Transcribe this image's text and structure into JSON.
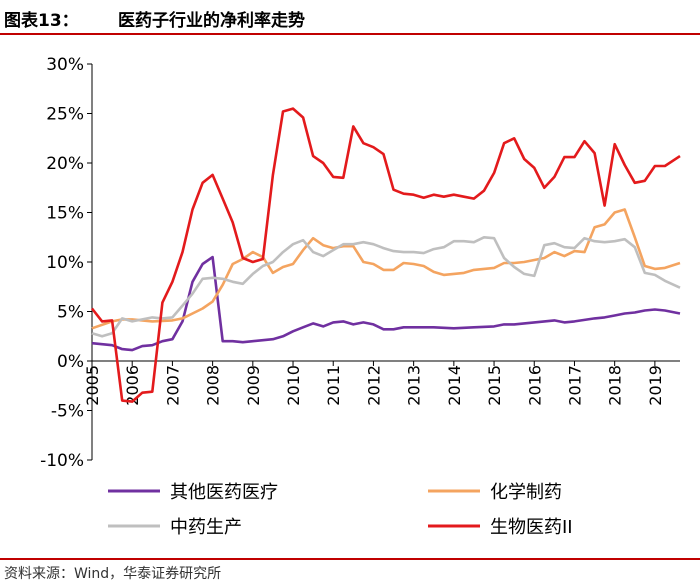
{
  "header": {
    "label": "图表13：",
    "title": "医药子行业的净利率走势"
  },
  "source": "资料来源：Wind，华泰证券研究所",
  "colors": {
    "accent": "#c00000"
  },
  "chart_data": {
    "type": "line",
    "title": "医药子行业的净利率走势",
    "xlabel": "",
    "ylabel": "",
    "ylim": [
      -10,
      30
    ],
    "xlim": [
      2005,
      2019.625
    ],
    "y_ticks": [
      -10,
      -5,
      0,
      5,
      10,
      15,
      20,
      25,
      30
    ],
    "y_tick_labels": [
      "-10%",
      "-5%",
      "0%",
      "5%",
      "10%",
      "15%",
      "20%",
      "25%",
      "30%"
    ],
    "x_ticks": [
      2005,
      2006,
      2007,
      2008,
      2009,
      2010,
      2011,
      2012,
      2013,
      2014,
      2015,
      2016,
      2017,
      2018,
      2019
    ],
    "x_tick_labels": [
      "2005",
      "2006",
      "2007",
      "2008",
      "2009",
      "2010",
      "2011",
      "2012",
      "2013",
      "2014",
      "2015",
      "2016",
      "2017",
      "2018",
      "2019"
    ],
    "grid": false,
    "legend_position": "bottom",
    "series": [
      {
        "name": "其他医药医疗",
        "color": "#7030a0",
        "points": [
          [
            2005,
            1.8
          ],
          [
            2005.5,
            1.6
          ],
          [
            2005.75,
            1.2
          ],
          [
            2006,
            1.1
          ],
          [
            2006.25,
            1.5
          ],
          [
            2006.5,
            1.6
          ],
          [
            2006.75,
            2.0
          ],
          [
            2007,
            2.2
          ],
          [
            2007.25,
            4.0
          ],
          [
            2007.5,
            8.0
          ],
          [
            2007.75,
            9.8
          ],
          [
            2008,
            10.5
          ],
          [
            2008.25,
            2.0
          ],
          [
            2008.5,
            2.0
          ],
          [
            2008.75,
            1.9
          ],
          [
            2009,
            2.0
          ],
          [
            2009.25,
            2.1
          ],
          [
            2009.5,
            2.2
          ],
          [
            2009.75,
            2.5
          ],
          [
            2010,
            3.0
          ],
          [
            2010.25,
            3.4
          ],
          [
            2010.5,
            3.8
          ],
          [
            2010.75,
            3.5
          ],
          [
            2011,
            3.9
          ],
          [
            2011.25,
            4.0
          ],
          [
            2011.5,
            3.7
          ],
          [
            2011.75,
            3.9
          ],
          [
            2012,
            3.7
          ],
          [
            2012.25,
            3.2
          ],
          [
            2012.5,
            3.2
          ],
          [
            2012.75,
            3.4
          ],
          [
            2013,
            3.4
          ],
          [
            2013.5,
            3.4
          ],
          [
            2014,
            3.3
          ],
          [
            2014.5,
            3.4
          ],
          [
            2015,
            3.5
          ],
          [
            2015.25,
            3.7
          ],
          [
            2015.5,
            3.7
          ],
          [
            2015.75,
            3.8
          ],
          [
            2016,
            3.9
          ],
          [
            2016.5,
            4.1
          ],
          [
            2016.75,
            3.9
          ],
          [
            2017,
            4.0
          ],
          [
            2017.5,
            4.3
          ],
          [
            2017.75,
            4.4
          ],
          [
            2018,
            4.6
          ],
          [
            2018.25,
            4.8
          ],
          [
            2018.5,
            4.9
          ],
          [
            2018.75,
            5.1
          ],
          [
            2019,
            5.2
          ],
          [
            2019.25,
            5.1
          ],
          [
            2019.625,
            4.8
          ]
        ]
      },
      {
        "name": "化学制药",
        "color": "#f4a460",
        "points": [
          [
            2005,
            3.3
          ],
          [
            2005.5,
            4.0
          ],
          [
            2005.75,
            4.2
          ],
          [
            2006,
            4.2
          ],
          [
            2006.5,
            4.0
          ],
          [
            2007,
            4.1
          ],
          [
            2007.25,
            4.3
          ],
          [
            2007.5,
            4.8
          ],
          [
            2007.75,
            5.3
          ],
          [
            2008,
            6.0
          ],
          [
            2008.25,
            7.7
          ],
          [
            2008.5,
            9.8
          ],
          [
            2008.75,
            10.3
          ],
          [
            2009,
            11.0
          ],
          [
            2009.25,
            10.5
          ],
          [
            2009.5,
            8.9
          ],
          [
            2009.75,
            9.5
          ],
          [
            2010,
            9.8
          ],
          [
            2010.25,
            11.2
          ],
          [
            2010.5,
            12.4
          ],
          [
            2010.75,
            11.7
          ],
          [
            2011,
            11.4
          ],
          [
            2011.25,
            11.6
          ],
          [
            2011.5,
            11.6
          ],
          [
            2011.75,
            10.0
          ],
          [
            2012,
            9.8
          ],
          [
            2012.25,
            9.2
          ],
          [
            2012.5,
            9.2
          ],
          [
            2012.75,
            9.9
          ],
          [
            2013,
            9.8
          ],
          [
            2013.25,
            9.6
          ],
          [
            2013.5,
            9.0
          ],
          [
            2013.75,
            8.7
          ],
          [
            2014,
            8.8
          ],
          [
            2014.25,
            8.9
          ],
          [
            2014.5,
            9.2
          ],
          [
            2014.75,
            9.3
          ],
          [
            2015,
            9.4
          ],
          [
            2015.25,
            9.9
          ],
          [
            2015.5,
            9.9
          ],
          [
            2015.75,
            10.0
          ],
          [
            2016,
            10.2
          ],
          [
            2016.25,
            10.4
          ],
          [
            2016.5,
            11.0
          ],
          [
            2016.75,
            10.6
          ],
          [
            2017,
            11.1
          ],
          [
            2017.25,
            11.0
          ],
          [
            2017.5,
            13.5
          ],
          [
            2017.75,
            13.8
          ],
          [
            2018,
            15.0
          ],
          [
            2018.25,
            15.3
          ],
          [
            2018.5,
            12.5
          ],
          [
            2018.75,
            9.6
          ],
          [
            2019,
            9.3
          ],
          [
            2019.25,
            9.4
          ],
          [
            2019.625,
            9.9
          ]
        ]
      },
      {
        "name": "中药生产",
        "color": "#bfbfbf",
        "points": [
          [
            2005,
            2.8
          ],
          [
            2005.25,
            2.5
          ],
          [
            2005.5,
            2.8
          ],
          [
            2005.75,
            4.3
          ],
          [
            2006,
            4.0
          ],
          [
            2006.25,
            4.2
          ],
          [
            2006.5,
            4.4
          ],
          [
            2006.75,
            4.3
          ],
          [
            2007,
            4.4
          ],
          [
            2007.25,
            5.6
          ],
          [
            2007.5,
            6.8
          ],
          [
            2007.75,
            8.3
          ],
          [
            2008,
            8.4
          ],
          [
            2008.25,
            8.3
          ],
          [
            2008.5,
            8.0
          ],
          [
            2008.75,
            7.8
          ],
          [
            2009,
            8.8
          ],
          [
            2009.25,
            9.6
          ],
          [
            2009.5,
            10.0
          ],
          [
            2009.75,
            11.0
          ],
          [
            2010,
            11.8
          ],
          [
            2010.25,
            12.2
          ],
          [
            2010.5,
            11.0
          ],
          [
            2010.75,
            10.6
          ],
          [
            2011,
            11.2
          ],
          [
            2011.25,
            11.8
          ],
          [
            2011.5,
            11.8
          ],
          [
            2011.75,
            12.0
          ],
          [
            2012,
            11.8
          ],
          [
            2012.25,
            11.4
          ],
          [
            2012.5,
            11.1
          ],
          [
            2012.75,
            11.0
          ],
          [
            2013,
            11.0
          ],
          [
            2013.25,
            10.9
          ],
          [
            2013.5,
            11.3
          ],
          [
            2013.75,
            11.5
          ],
          [
            2014,
            12.1
          ],
          [
            2014.25,
            12.1
          ],
          [
            2014.5,
            12.0
          ],
          [
            2014.75,
            12.5
          ],
          [
            2015,
            12.4
          ],
          [
            2015.25,
            10.4
          ],
          [
            2015.5,
            9.5
          ],
          [
            2015.75,
            8.8
          ],
          [
            2016,
            8.6
          ],
          [
            2016.25,
            11.7
          ],
          [
            2016.5,
            11.9
          ],
          [
            2016.75,
            11.5
          ],
          [
            2017,
            11.4
          ],
          [
            2017.25,
            12.4
          ],
          [
            2017.5,
            12.1
          ],
          [
            2017.75,
            12.0
          ],
          [
            2018,
            12.1
          ],
          [
            2018.25,
            12.3
          ],
          [
            2018.5,
            11.5
          ],
          [
            2018.75,
            8.9
          ],
          [
            2019,
            8.7
          ],
          [
            2019.25,
            8.1
          ],
          [
            2019.625,
            7.4
          ]
        ]
      },
      {
        "name": "生物医药II",
        "color": "#e31a1c",
        "points": [
          [
            2005,
            5.3
          ],
          [
            2005.25,
            4.0
          ],
          [
            2005.5,
            4.1
          ],
          [
            2005.75,
            -4.0
          ],
          [
            2006,
            -4.1
          ],
          [
            2006.25,
            -3.2
          ],
          [
            2006.5,
            -3.1
          ],
          [
            2006.75,
            5.9
          ],
          [
            2007,
            8.0
          ],
          [
            2007.25,
            11.0
          ],
          [
            2007.5,
            15.3
          ],
          [
            2007.75,
            18.0
          ],
          [
            2008,
            18.8
          ],
          [
            2008.25,
            16.4
          ],
          [
            2008.5,
            14.0
          ],
          [
            2008.75,
            10.4
          ],
          [
            2009,
            10.0
          ],
          [
            2009.25,
            10.3
          ],
          [
            2009.5,
            18.8
          ],
          [
            2009.75,
            25.2
          ],
          [
            2010,
            25.5
          ],
          [
            2010.25,
            24.6
          ],
          [
            2010.5,
            20.7
          ],
          [
            2010.75,
            20.0
          ],
          [
            2011,
            18.6
          ],
          [
            2011.25,
            18.5
          ],
          [
            2011.5,
            23.7
          ],
          [
            2011.75,
            22.0
          ],
          [
            2012,
            21.6
          ],
          [
            2012.25,
            20.9
          ],
          [
            2012.5,
            17.3
          ],
          [
            2012.75,
            16.9
          ],
          [
            2013,
            16.8
          ],
          [
            2013.25,
            16.5
          ],
          [
            2013.5,
            16.8
          ],
          [
            2013.75,
            16.6
          ],
          [
            2014,
            16.8
          ],
          [
            2014.25,
            16.6
          ],
          [
            2014.5,
            16.4
          ],
          [
            2014.75,
            17.2
          ],
          [
            2015,
            19.0
          ],
          [
            2015.25,
            22.0
          ],
          [
            2015.5,
            22.5
          ],
          [
            2015.75,
            20.4
          ],
          [
            2016,
            19.5
          ],
          [
            2016.25,
            17.5
          ],
          [
            2016.5,
            18.6
          ],
          [
            2016.75,
            20.6
          ],
          [
            2017,
            20.6
          ],
          [
            2017.25,
            22.2
          ],
          [
            2017.5,
            21.0
          ],
          [
            2017.75,
            15.7
          ],
          [
            2018,
            21.9
          ],
          [
            2018.25,
            19.8
          ],
          [
            2018.5,
            18.0
          ],
          [
            2018.75,
            18.2
          ],
          [
            2019,
            19.7
          ],
          [
            2019.25,
            19.7
          ],
          [
            2019.625,
            20.7
          ]
        ]
      }
    ]
  }
}
